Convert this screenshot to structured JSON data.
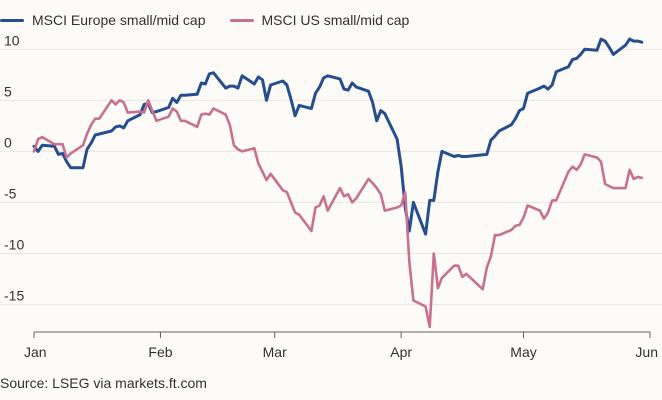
{
  "legend": {
    "items": [
      {
        "label": "MSCI Europe small/mid cap",
        "color": "#264d8e"
      },
      {
        "label": "MSCI US small/mid cap",
        "color": "#c8708f"
      }
    ]
  },
  "source": "Source: LSEG via markets.ft.com",
  "chart_data": {
    "type": "line",
    "title": "",
    "xlabel": "",
    "ylabel": "",
    "ylim": [
      -17.5,
      11.5
    ],
    "yticks": [
      10,
      5,
      0,
      -5,
      -10,
      -15
    ],
    "ytick_labels": [
      "10",
      "5",
      "0",
      "-5",
      "-10",
      "-15"
    ],
    "xlim": [
      "2025-01-01",
      "2025-06-01"
    ],
    "xticks": [
      "2025-01-01",
      "2025-02-01",
      "2025-03-01",
      "2025-04-01",
      "2025-05-01",
      "2025-06-01"
    ],
    "xtick_labels": [
      "Jan",
      "Feb",
      "Mar",
      "Apr",
      "May",
      "Jun"
    ],
    "grid": true,
    "legend_position": "top-left",
    "series": [
      {
        "name": "MSCI Europe small/mid cap",
        "color": "#264d8e",
        "points": [
          [
            "2025-01-01",
            0.5
          ],
          [
            "2025-01-02",
            0.0
          ],
          [
            "2025-01-03",
            0.6
          ],
          [
            "2025-01-06",
            0.5
          ],
          [
            "2025-01-07",
            -0.3
          ],
          [
            "2025-01-08",
            -0.2
          ],
          [
            "2025-01-09",
            -1.0
          ],
          [
            "2025-01-10",
            -1.6
          ],
          [
            "2025-01-13",
            -1.6
          ],
          [
            "2025-01-14",
            0.2
          ],
          [
            "2025-01-15",
            0.8
          ],
          [
            "2025-01-16",
            1.6
          ],
          [
            "2025-01-17",
            1.7
          ],
          [
            "2025-01-20",
            2.0
          ],
          [
            "2025-01-21",
            2.4
          ],
          [
            "2025-01-22",
            2.5
          ],
          [
            "2025-01-23",
            2.3
          ],
          [
            "2025-01-24",
            3.0
          ],
          [
            "2025-01-27",
            3.6
          ],
          [
            "2025-01-28",
            4.6
          ],
          [
            "2025-01-29",
            4.7
          ],
          [
            "2025-01-30",
            3.8
          ],
          [
            "2025-01-31",
            3.9
          ],
          [
            "2025-02-03",
            4.3
          ],
          [
            "2025-02-04",
            5.2
          ],
          [
            "2025-02-05",
            4.8
          ],
          [
            "2025-02-06",
            5.5
          ],
          [
            "2025-02-07",
            5.5
          ],
          [
            "2025-02-10",
            5.6
          ],
          [
            "2025-02-11",
            6.7
          ],
          [
            "2025-02-12",
            6.6
          ],
          [
            "2025-02-13",
            7.6
          ],
          [
            "2025-02-14",
            7.7
          ],
          [
            "2025-02-17",
            6.2
          ],
          [
            "2025-02-18",
            6.4
          ],
          [
            "2025-02-19",
            6.4
          ],
          [
            "2025-02-20",
            6.2
          ],
          [
            "2025-02-21",
            7.4
          ],
          [
            "2025-02-24",
            6.6
          ],
          [
            "2025-02-25",
            7.3
          ],
          [
            "2025-02-26",
            7.0
          ],
          [
            "2025-02-27",
            5.0
          ],
          [
            "2025-02-28",
            6.5
          ],
          [
            "2025-03-03",
            6.9
          ],
          [
            "2025-03-04",
            6.5
          ],
          [
            "2025-03-05",
            5.1
          ],
          [
            "2025-03-06",
            3.5
          ],
          [
            "2025-03-07",
            4.5
          ],
          [
            "2025-03-10",
            4.2
          ],
          [
            "2025-03-11",
            5.7
          ],
          [
            "2025-03-12",
            6.3
          ],
          [
            "2025-03-13",
            7.2
          ],
          [
            "2025-03-14",
            7.4
          ],
          [
            "2025-03-17",
            7.1
          ],
          [
            "2025-03-18",
            6.1
          ],
          [
            "2025-03-19",
            6.0
          ],
          [
            "2025-03-20",
            6.7
          ],
          [
            "2025-03-21",
            6.3
          ],
          [
            "2025-03-24",
            5.9
          ],
          [
            "2025-03-25",
            4.8
          ],
          [
            "2025-03-26",
            3.0
          ],
          [
            "2025-03-27",
            4.0
          ],
          [
            "2025-03-28",
            3.7
          ],
          [
            "2025-03-31",
            1.2
          ],
          [
            "2025-04-01",
            -1.5
          ],
          [
            "2025-04-02",
            -5.5
          ],
          [
            "2025-04-03",
            -7.8
          ],
          [
            "2025-04-04",
            -5.0
          ],
          [
            "2025-04-07",
            -8.1
          ],
          [
            "2025-04-08",
            -4.8
          ],
          [
            "2025-04-09",
            -4.8
          ],
          [
            "2025-04-10",
            -2.0
          ],
          [
            "2025-04-11",
            0.0
          ],
          [
            "2025-04-14",
            -0.5
          ],
          [
            "2025-04-15",
            -0.4
          ],
          [
            "2025-04-16",
            -0.5
          ],
          [
            "2025-04-17",
            -0.5
          ],
          [
            "2025-04-22",
            -0.3
          ],
          [
            "2025-04-23",
            1.1
          ],
          [
            "2025-04-24",
            1.5
          ],
          [
            "2025-04-25",
            2.0
          ],
          [
            "2025-04-28",
            2.6
          ],
          [
            "2025-04-29",
            3.2
          ],
          [
            "2025-04-30",
            4.0
          ],
          [
            "2025-05-01",
            4.2
          ],
          [
            "2025-05-02",
            5.7
          ],
          [
            "2025-05-05",
            6.2
          ],
          [
            "2025-05-06",
            6.4
          ],
          [
            "2025-05-07",
            6.1
          ],
          [
            "2025-05-08",
            6.5
          ],
          [
            "2025-05-09",
            7.8
          ],
          [
            "2025-05-12",
            8.3
          ],
          [
            "2025-05-13",
            9.0
          ],
          [
            "2025-05-14",
            9.1
          ],
          [
            "2025-05-15",
            9.5
          ],
          [
            "2025-05-16",
            10.0
          ],
          [
            "2025-05-19",
            9.9
          ],
          [
            "2025-05-20",
            11.0
          ],
          [
            "2025-05-21",
            10.8
          ],
          [
            "2025-05-22",
            10.2
          ],
          [
            "2025-05-23",
            9.5
          ],
          [
            "2025-05-26",
            10.4
          ],
          [
            "2025-05-27",
            11.0
          ],
          [
            "2025-05-28",
            10.8
          ],
          [
            "2025-05-29",
            10.8
          ],
          [
            "2025-05-30",
            10.7
          ]
        ]
      },
      {
        "name": "MSCI US small/mid cap",
        "color": "#c8708f",
        "points": [
          [
            "2025-01-01",
            0.0
          ],
          [
            "2025-01-02",
            1.2
          ],
          [
            "2025-01-03",
            1.4
          ],
          [
            "2025-01-06",
            0.7
          ],
          [
            "2025-01-07",
            0.7
          ],
          [
            "2025-01-08",
            0.7
          ],
          [
            "2025-01-09",
            -0.6
          ],
          [
            "2025-01-10",
            -0.2
          ],
          [
            "2025-01-13",
            0.6
          ],
          [
            "2025-01-14",
            1.7
          ],
          [
            "2025-01-15",
            2.6
          ],
          [
            "2025-01-16",
            3.2
          ],
          [
            "2025-01-17",
            3.2
          ],
          [
            "2025-01-20",
            5.0
          ],
          [
            "2025-01-21",
            4.6
          ],
          [
            "2025-01-22",
            5.0
          ],
          [
            "2025-01-23",
            4.8
          ],
          [
            "2025-01-24",
            3.8
          ],
          [
            "2025-01-27",
            3.9
          ],
          [
            "2025-01-28",
            3.8
          ],
          [
            "2025-01-29",
            5.0
          ],
          [
            "2025-01-30",
            4.0
          ],
          [
            "2025-01-31",
            3.0
          ],
          [
            "2025-02-03",
            3.4
          ],
          [
            "2025-02-04",
            4.2
          ],
          [
            "2025-02-05",
            3.9
          ],
          [
            "2025-02-06",
            3.0
          ],
          [
            "2025-02-07",
            3.0
          ],
          [
            "2025-02-10",
            2.4
          ],
          [
            "2025-02-11",
            3.6
          ],
          [
            "2025-02-12",
            3.7
          ],
          [
            "2025-02-13",
            3.6
          ],
          [
            "2025-02-14",
            4.2
          ],
          [
            "2025-02-17",
            3.6
          ],
          [
            "2025-02-18",
            2.6
          ],
          [
            "2025-02-19",
            0.6
          ],
          [
            "2025-02-20",
            0.2
          ],
          [
            "2025-02-21",
            0.0
          ],
          [
            "2025-02-24",
            0.3
          ],
          [
            "2025-02-25",
            -1.2
          ],
          [
            "2025-02-26",
            -2.0
          ],
          [
            "2025-02-27",
            -2.8
          ],
          [
            "2025-02-28",
            -2.2
          ],
          [
            "2025-03-03",
            -3.8
          ],
          [
            "2025-03-04",
            -4.0
          ],
          [
            "2025-03-05",
            -5.0
          ],
          [
            "2025-03-06",
            -6.0
          ],
          [
            "2025-03-07",
            -6.2
          ],
          [
            "2025-03-10",
            -7.8
          ],
          [
            "2025-03-11",
            -5.5
          ],
          [
            "2025-03-12",
            -5.3
          ],
          [
            "2025-03-13",
            -4.4
          ],
          [
            "2025-03-14",
            -5.8
          ],
          [
            "2025-03-17",
            -3.6
          ],
          [
            "2025-03-18",
            -4.4
          ],
          [
            "2025-03-19",
            -4.2
          ],
          [
            "2025-03-20",
            -5.0
          ],
          [
            "2025-03-21",
            -4.6
          ],
          [
            "2025-03-24",
            -2.7
          ],
          [
            "2025-03-25",
            -3.1
          ],
          [
            "2025-03-26",
            -3.6
          ],
          [
            "2025-03-27",
            -4.2
          ],
          [
            "2025-03-28",
            -5.8
          ],
          [
            "2025-03-31",
            -5.5
          ],
          [
            "2025-04-01",
            -5.3
          ],
          [
            "2025-04-02",
            -4.0
          ],
          [
            "2025-04-03",
            -10.8
          ],
          [
            "2025-04-04",
            -14.6
          ],
          [
            "2025-04-07",
            -15.2
          ],
          [
            "2025-04-08",
            -17.2
          ],
          [
            "2025-04-09",
            -10.0
          ],
          [
            "2025-04-10",
            -13.4
          ],
          [
            "2025-04-11",
            -12.4
          ],
          [
            "2025-04-14",
            -11.2
          ],
          [
            "2025-04-15",
            -11.2
          ],
          [
            "2025-04-16",
            -12.3
          ],
          [
            "2025-04-17",
            -12.0
          ],
          [
            "2025-04-21",
            -13.5
          ],
          [
            "2025-04-22",
            -11.4
          ],
          [
            "2025-04-23",
            -10.3
          ],
          [
            "2025-04-24",
            -8.2
          ],
          [
            "2025-04-25",
            -8.2
          ],
          [
            "2025-04-28",
            -7.7
          ],
          [
            "2025-04-29",
            -7.3
          ],
          [
            "2025-04-30",
            -7.2
          ],
          [
            "2025-05-01",
            -6.5
          ],
          [
            "2025-05-02",
            -5.3
          ],
          [
            "2025-05-05",
            -5.8
          ],
          [
            "2025-05-06",
            -6.6
          ],
          [
            "2025-05-07",
            -6.0
          ],
          [
            "2025-05-08",
            -4.8
          ],
          [
            "2025-05-09",
            -4.8
          ],
          [
            "2025-05-12",
            -2.0
          ],
          [
            "2025-05-13",
            -1.5
          ],
          [
            "2025-05-14",
            -1.8
          ],
          [
            "2025-05-15",
            -1.3
          ],
          [
            "2025-05-16",
            -0.3
          ],
          [
            "2025-05-19",
            -0.6
          ],
          [
            "2025-05-20",
            -1.0
          ],
          [
            "2025-05-21",
            -3.2
          ],
          [
            "2025-05-22",
            -3.4
          ],
          [
            "2025-05-23",
            -3.6
          ],
          [
            "2025-05-26",
            -3.6
          ],
          [
            "2025-05-27",
            -1.8
          ],
          [
            "2025-05-28",
            -2.7
          ],
          [
            "2025-05-29",
            -2.5
          ],
          [
            "2025-05-30",
            -2.6
          ]
        ]
      }
    ]
  }
}
